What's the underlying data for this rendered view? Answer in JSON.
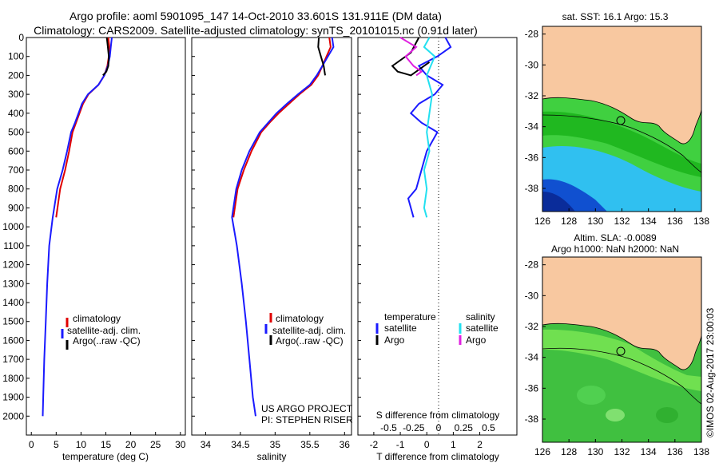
{
  "title_line1": "Argo profile: aoml 5901095_147 14-Oct-2010 33.601S 131.911E (DM data)",
  "title_line2": "Climatology: CARS2009. Satellite-adjusted climatology: synTS_20101015.nc (0.91d later)",
  "colors": {
    "climatology": "#e00000",
    "satellite": "#1a1aff",
    "argo": "#000000",
    "sat_salinity": "#22e0f0",
    "argo_salinity": "#e020e0",
    "land": "#f8c8a0"
  },
  "chart_data": [
    {
      "type": "line",
      "xlabel": "temperature (deg C)",
      "ylabel": "",
      "xlim": [
        -1,
        31
      ],
      "ylim": [
        2100,
        0
      ],
      "x_ticks": [
        "0",
        "5",
        "10",
        "15",
        "20",
        "25",
        "30"
      ],
      "y_ticks": [
        "0",
        "100",
        "200",
        "300",
        "400",
        "500",
        "600",
        "700",
        "800",
        "900",
        "1000",
        "1100",
        "1200",
        "1300",
        "1400",
        "1500",
        "1600",
        "1700",
        "1800",
        "1900",
        "2000"
      ],
      "legend": [
        "climatology",
        "satellite-adj. clim.",
        "Argo(..raw -QC)"
      ],
      "series": [
        {
          "name": "climatology",
          "color": "#e00000",
          "x": [
            15.5,
            15.7,
            15.6,
            15.3,
            14.7,
            13.5,
            11.5,
            10.4,
            9.7,
            9.0,
            8.3,
            7.6,
            6.8,
            5.8,
            5.0
          ],
          "y": [
            0,
            50,
            100,
            150,
            200,
            250,
            300,
            350,
            400,
            450,
            500,
            600,
            700,
            800,
            950
          ]
        },
        {
          "name": "satellite-adj. clim.",
          "color": "#1a1aff",
          "x": [
            16.2,
            16.0,
            15.8,
            15.4,
            14.7,
            13.5,
            11.4,
            10.2,
            9.5,
            8.8,
            8.0,
            7.2,
            6.3,
            5.2,
            4.3,
            3.6,
            3.2,
            2.9,
            2.6,
            2.4,
            2.3
          ],
          "y": [
            0,
            50,
            100,
            150,
            200,
            250,
            300,
            350,
            400,
            450,
            500,
            600,
            700,
            800,
            950,
            1100,
            1300,
            1500,
            1700,
            1900,
            2000
          ]
        },
        {
          "name": "Argo(..raw -QC)",
          "color": "#000000",
          "x": [
            15.2,
            15.4,
            15.6,
            15.5,
            15.1,
            14.4
          ],
          "y": [
            0,
            50,
            100,
            150,
            180,
            200
          ]
        }
      ]
    },
    {
      "type": "line",
      "xlabel": "salinity",
      "xlim": [
        33.8,
        36.1
      ],
      "ylim": [
        2100,
        0
      ],
      "x_ticks": [
        "34",
        "34.5",
        "35",
        "35.5",
        "36"
      ],
      "legend": [
        "climatology",
        "satellite-adj. clim.",
        "Argo(..raw -QC)"
      ],
      "annotation": [
        "US ARGO PROJECT",
        "PI: STEPHEN RISER"
      ],
      "series": [
        {
          "name": "climatology",
          "color": "#e00000",
          "x": [
            35.78,
            35.8,
            35.74,
            35.68,
            35.62,
            35.52,
            35.35,
            35.2,
            35.05,
            34.92,
            34.8,
            34.66,
            34.55,
            34.46,
            34.4
          ],
          "y": [
            0,
            50,
            100,
            150,
            200,
            250,
            300,
            350,
            400,
            450,
            500,
            600,
            700,
            800,
            950
          ]
        },
        {
          "name": "satellite-adj. clim.",
          "color": "#1a1aff",
          "x": [
            35.82,
            35.84,
            35.76,
            35.68,
            35.6,
            35.5,
            35.33,
            35.17,
            35.02,
            34.9,
            34.78,
            34.63,
            34.52,
            34.44,
            34.38,
            34.45,
            34.52,
            34.58,
            34.63,
            34.68,
            34.72
          ],
          "y": [
            0,
            50,
            100,
            150,
            200,
            250,
            300,
            350,
            400,
            450,
            500,
            600,
            700,
            800,
            950,
            1100,
            1300,
            1500,
            1700,
            1900,
            2000
          ]
        },
        {
          "name": "Argo(..raw -QC)",
          "color": "#000000",
          "x": [
            35.63,
            35.62,
            35.66,
            35.7,
            35.72
          ],
          "y": [
            0,
            50,
            100,
            150,
            200
          ]
        }
      ]
    },
    {
      "type": "line",
      "xlabel": "T difference from climatology",
      "top_xlabel": "S difference from climatology",
      "xlim": [
        -2.6,
        3.4
      ],
      "ylim": [
        2100,
        0
      ],
      "x_ticks": [
        "-2",
        "-1",
        "0",
        "1",
        "2"
      ],
      "s_ticks": [
        "-0.5",
        "-0.25",
        "0",
        "0.25",
        "0.5"
      ],
      "legend_temperature_title": "temperature",
      "legend_salinity_title": "salinity",
      "legend_temperature": [
        "satellite",
        "Argo"
      ],
      "legend_salinity": [
        "satellite",
        "Argo"
      ],
      "series": [
        {
          "name": "temperature satellite",
          "color": "#1a1aff",
          "x": [
            0.7,
            0.9,
            0.4,
            -0.3,
            0.0,
            0.6,
            0.3,
            -0.3,
            -0.6,
            -0.2,
            0.4,
            0.0,
            -0.2,
            -0.4,
            -0.7,
            -0.5
          ],
          "y": [
            0,
            50,
            100,
            150,
            200,
            250,
            300,
            350,
            400,
            450,
            500,
            600,
            700,
            800,
            850,
            950
          ]
        },
        {
          "name": "temperature Argo",
          "color": "#000000",
          "x": [
            -0.3,
            -0.6,
            -1.3,
            -1.1,
            -0.6,
            0.1
          ],
          "y": [
            0,
            80,
            150,
            180,
            200,
            130
          ]
        },
        {
          "name": "salinity satellite",
          "color": "#22e0f0",
          "x": [
            0.1,
            -0.1,
            0.3,
            0.0,
            0.2,
            0.1,
            0.0,
            0.1,
            -0.1,
            0.0,
            -0.1,
            0.0
          ],
          "y": [
            0,
            50,
            100,
            200,
            300,
            400,
            500,
            600,
            700,
            800,
            900,
            950
          ]
        },
        {
          "name": "salinity Argo",
          "color": "#e020e0",
          "x": [
            -1.0,
            -0.4,
            -0.8,
            -0.5,
            -0.2,
            -0.4
          ],
          "y": [
            0,
            50,
            100,
            150,
            180,
            200
          ]
        }
      ]
    },
    {
      "type": "heatmap",
      "title": "sat. SST: 16.1  Argo: 15.3",
      "x_ticks": [
        "126",
        "128",
        "130",
        "132",
        "134",
        "136",
        "138"
      ],
      "y_ticks": [
        "-28",
        "-30",
        "-32",
        "-34",
        "-36",
        "-38"
      ],
      "xlim": [
        126,
        138
      ],
      "ylim": [
        -39.5,
        -27.5
      ],
      "argo_position": [
        131.911,
        -33.601
      ]
    },
    {
      "type": "heatmap",
      "title": "Altim. SLA: -0.0089",
      "subtitle": "Argo h1000: NaN h2000: NaN",
      "x_ticks": [
        "126",
        "128",
        "130",
        "132",
        "134",
        "136",
        "138"
      ],
      "y_ticks": [
        "-28",
        "-30",
        "-32",
        "-34",
        "-36",
        "-38"
      ],
      "xlim": [
        126,
        138
      ],
      "ylim": [
        -39.5,
        -27.5
      ],
      "argo_position": [
        131.911,
        -33.601
      ]
    }
  ],
  "credit": "©IMOS 02-Aug-2017 23:00:03"
}
